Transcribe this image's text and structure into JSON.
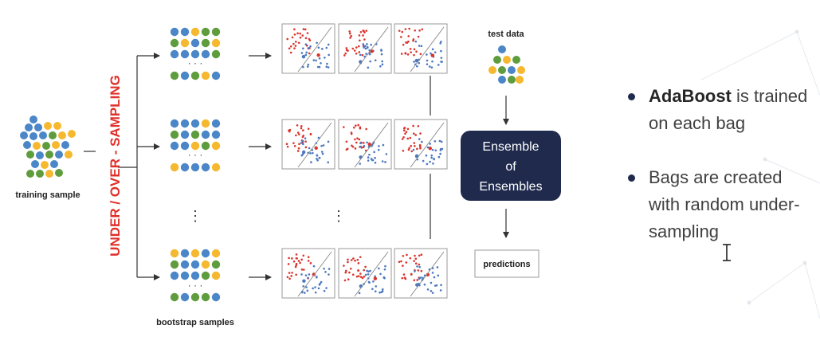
{
  "diagram": {
    "training_label": "training sample",
    "sampling_label": "UNDER / OVER - SAMPLING",
    "bootstrap_label": "bootstrap  samples",
    "test_label": "test data",
    "ensemble_lines": [
      "Ensemble",
      "of",
      "Ensembles"
    ],
    "predictions_label": "predictions",
    "row_dots": "· · ·",
    "vertical_dots": "⋮"
  },
  "bullets": [
    {
      "bold": "AdaBoost",
      "rest": " is trained on each bag"
    },
    {
      "bold": "",
      "rest": "Bags are created with random under-sampling"
    }
  ],
  "colors": {
    "blue": "#4a86c8",
    "yellow": "#f5b82e",
    "green": "#5f9c3e",
    "red_scatter": "#d9342b",
    "navy": "#1f2a4d",
    "sampling_text": "#e0302a"
  }
}
